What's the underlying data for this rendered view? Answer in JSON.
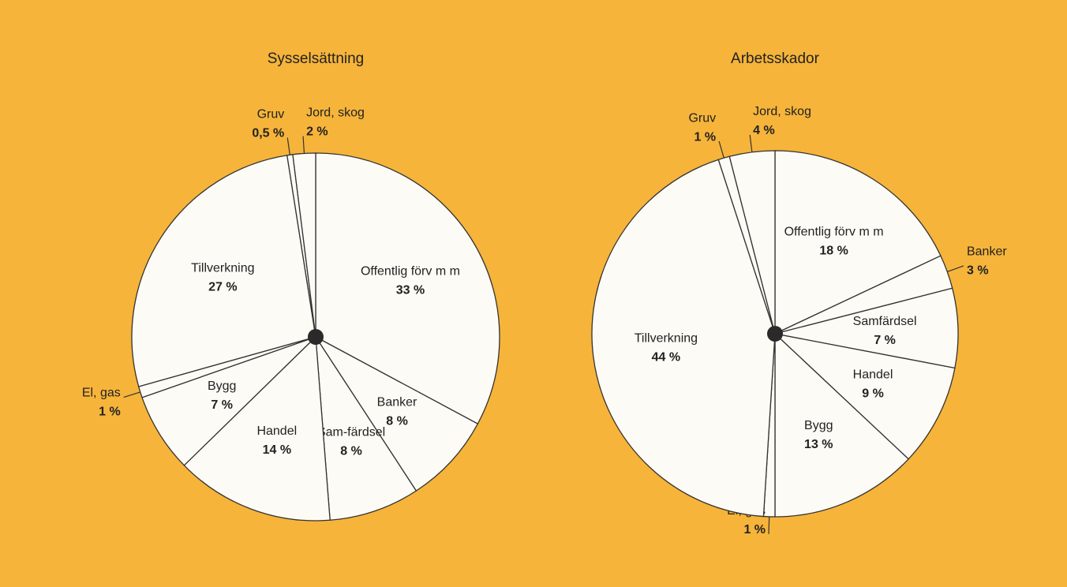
{
  "chart_data": [
    {
      "type": "pie",
      "title": "Sysselsättning",
      "categories": [
        "Offentlig förv m m",
        "Banker",
        "Sam-färdsel",
        "Handel",
        "Bygg",
        "El, gas",
        "Tillverkning",
        "Gruv",
        "Jord, skog"
      ],
      "values": [
        33,
        8,
        8,
        14,
        7,
        1,
        27,
        0.5,
        2
      ],
      "value_labels": [
        "33 %",
        "8 %",
        "8 %",
        "14 %",
        "7 %",
        "1 %",
        "27 %",
        "0,5 %",
        "2 %"
      ]
    },
    {
      "type": "pie",
      "title": "Arbetsskador",
      "categories": [
        "Offentlig förv m m",
        "Banker",
        "Samfärdsel",
        "Handel",
        "Bygg",
        "El, gas",
        "Tillverkning",
        "Gruv",
        "Jord, skog"
      ],
      "values": [
        18,
        3,
        7,
        9,
        13,
        1,
        44,
        1,
        4
      ],
      "value_labels": [
        "18 %",
        "3 %",
        "7 %",
        "9 %",
        "13 %",
        "1 %",
        "44 %",
        "1 %",
        "4 %"
      ]
    }
  ]
}
